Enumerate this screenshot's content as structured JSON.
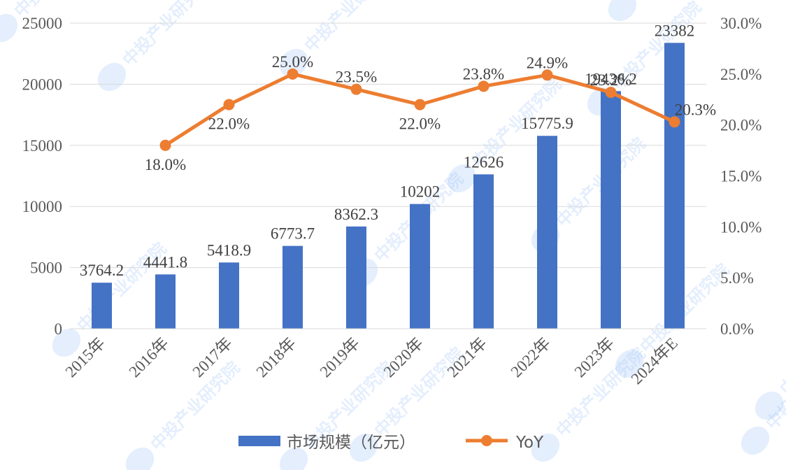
{
  "chart_data": {
    "type": "bar",
    "categories": [
      "2015年",
      "2016年",
      "2017年",
      "2018年",
      "2019年",
      "2020年",
      "2021年",
      "2022年",
      "2023年",
      "2024年E"
    ],
    "series": [
      {
        "name": "市场规模（亿元）",
        "type": "bar",
        "axis": "left",
        "color": "#4472C4",
        "values": [
          3764.2,
          4441.8,
          5418.9,
          6773.7,
          8362.3,
          10202,
          12626,
          15775.9,
          19436.2,
          23382
        ],
        "labels": [
          "3764.2",
          "4441.8",
          "5418.9",
          "6773.7",
          "8362.3",
          "10202",
          "12626",
          "15775.9",
          "19436.2",
          "23382"
        ]
      },
      {
        "name": "YoY",
        "type": "line",
        "axis": "right",
        "color": "#ED7D31",
        "values": [
          null,
          18.0,
          22.0,
          25.0,
          23.5,
          22.0,
          23.8,
          24.9,
          23.2,
          20.3
        ],
        "labels": [
          "",
          "18.0%",
          "22.0%",
          "25.0%",
          "23.5%",
          "22.0%",
          "23.8%",
          "24.9%",
          "23.2%",
          "20.3%"
        ]
      }
    ],
    "y_left": {
      "ylim": [
        0,
        25000
      ],
      "ticks": [
        "0",
        "5000",
        "10000",
        "15000",
        "20000",
        "25000"
      ]
    },
    "y_right": {
      "ylim": [
        0,
        30
      ],
      "ticks": [
        "0.0%",
        "5.0%",
        "10.0%",
        "15.0%",
        "20.0%",
        "25.0%",
        "30.0%"
      ]
    },
    "grid": true,
    "legend_position": "bottom",
    "watermark": "中投产业研究院"
  }
}
